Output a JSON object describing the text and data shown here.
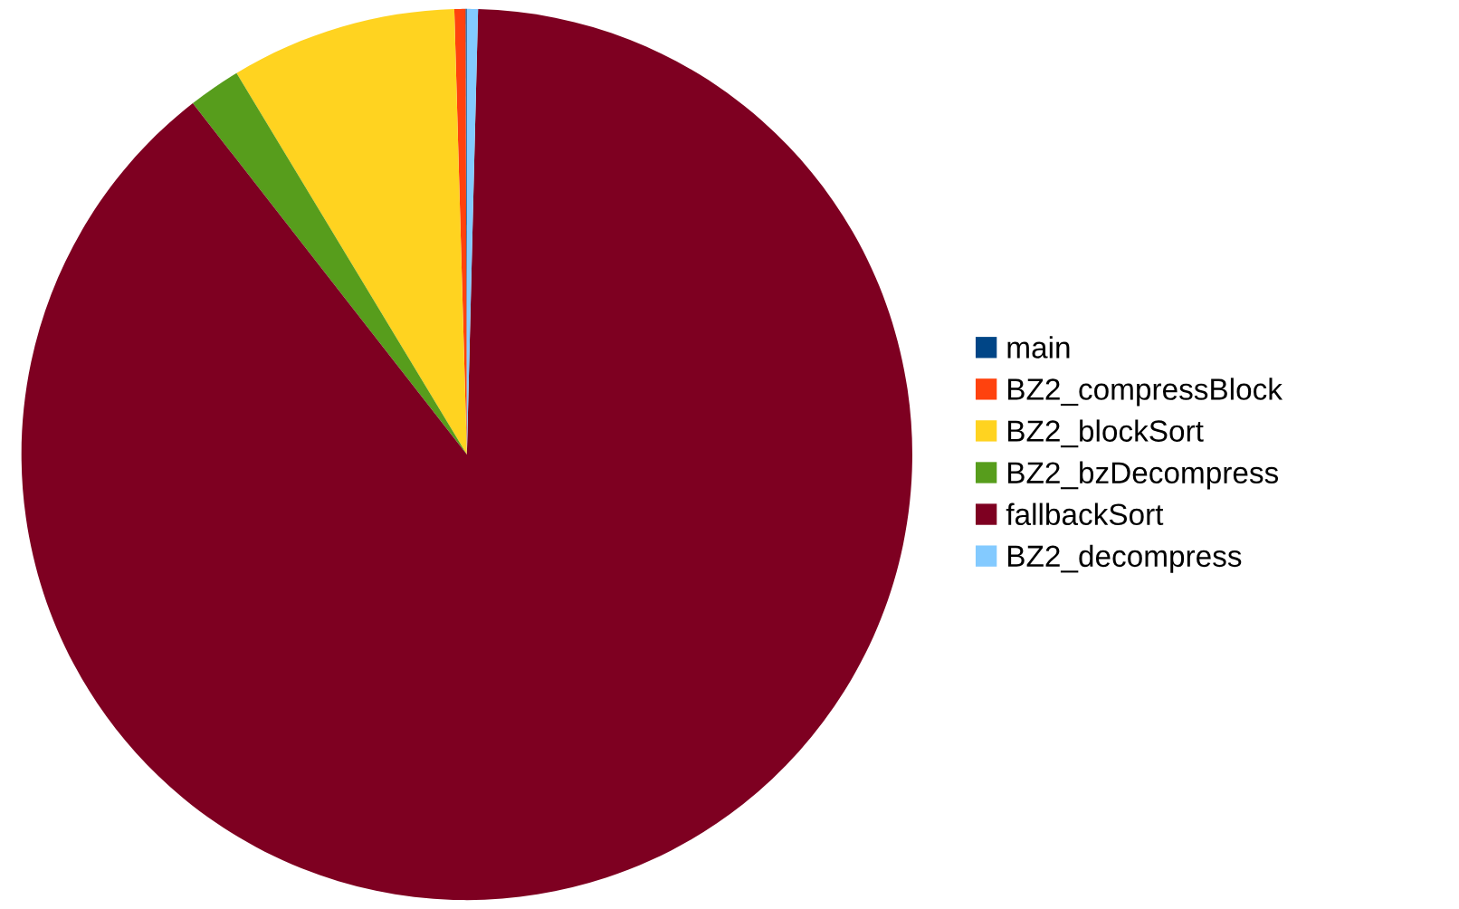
{
  "chart_data": {
    "type": "pie",
    "categories": [
      "main",
      "BZ2_compressBlock",
      "BZ2_blockSort",
      "BZ2_bzDecompress",
      "fallbackSort",
      "BZ2_decompress"
    ],
    "values": [
      0.05,
      0.4,
      8.2,
      1.9,
      89.05,
      0.4
    ],
    "colors": [
      "#004586",
      "#ff420e",
      "#ffd320",
      "#579d1c",
      "#7e0021",
      "#83caff"
    ],
    "legend": "right"
  }
}
